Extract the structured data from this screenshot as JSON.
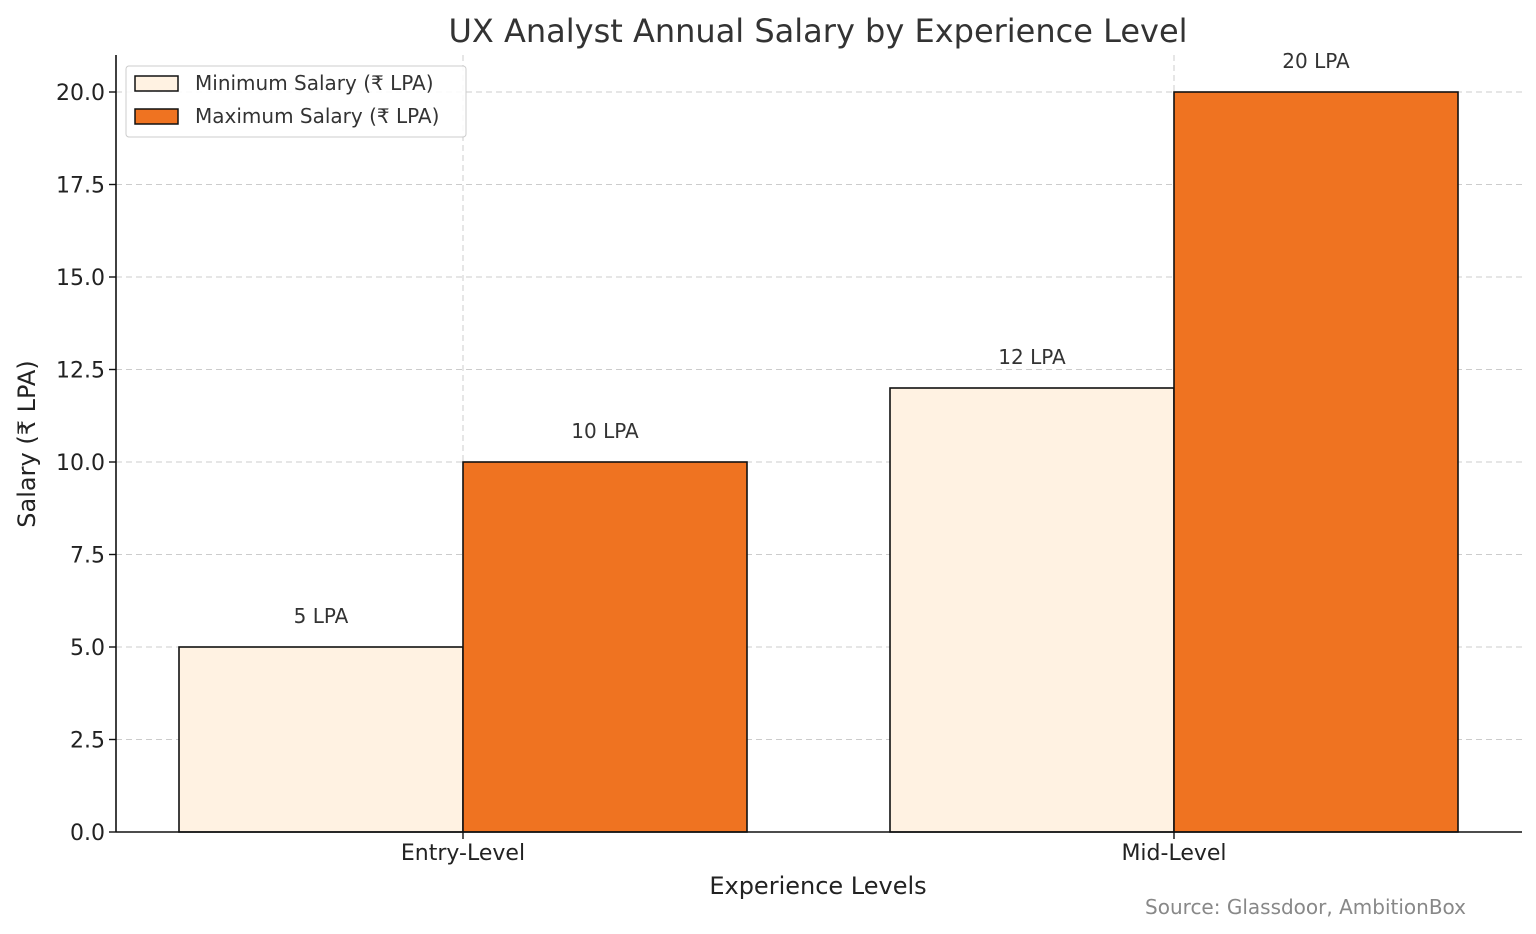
{
  "chart_data": {
    "type": "bar",
    "title": "UX Analyst Annual Salary by Experience Level",
    "xlabel": "Experience Levels",
    "ylabel": "Salary (₹ LPA)",
    "categories": [
      "Entry-Level",
      "Mid-Level"
    ],
    "series": [
      {
        "name": "Minimum Salary (₹ LPA)",
        "values": [
          5,
          12
        ],
        "labels": [
          "5 LPA",
          "12 LPA"
        ],
        "color": "#FFF2E2"
      },
      {
        "name": "Maximum Salary (₹ LPA)",
        "values": [
          10,
          20
        ],
        "labels": [
          "10 LPA",
          "20 LPA"
        ],
        "color": "#EF7321"
      }
    ],
    "ylim": [
      0,
      21
    ],
    "yticks": [
      0,
      2.5,
      5,
      7.5,
      10,
      12.5,
      15,
      17.5,
      20
    ],
    "ytick_labels": [
      "0.0",
      "2.5",
      "5.0",
      "7.5",
      "10.0",
      "12.5",
      "15.0",
      "17.5",
      "20.0"
    ],
    "grid": true,
    "legend_position": "top-left",
    "source_note": "Source: Glassdoor, AmbitionBox"
  }
}
